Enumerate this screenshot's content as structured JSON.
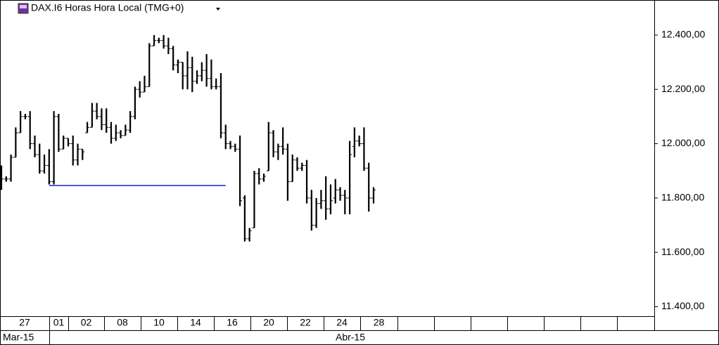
{
  "chart_data": {
    "type": "ohlc",
    "title": "DAX.I6 Horas Hora Local (TMG+0)",
    "ylim": [
      11365,
      12529
    ],
    "yticks": [
      {
        "value": 11400,
        "label": "11.400,00"
      },
      {
        "value": 11600,
        "label": "11.600,00"
      },
      {
        "value": 11800,
        "label": "11.800,00"
      },
      {
        "value": 12000,
        "label": "12.000,00"
      },
      {
        "value": 12200,
        "label": "12.200,00"
      },
      {
        "value": 12400,
        "label": "12.400,00"
      }
    ],
    "color": "#000000",
    "open": [
      11880,
      11870,
      11870,
      11950,
      12040,
      12100,
      12100,
      12000,
      11960,
      11900,
      11920,
      11860,
      12100,
      11980,
      12020,
      12000,
      11940,
      11980,
      12040,
      12060,
      12120,
      12100,
      12070,
      12060,
      12020,
      12040,
      12030,
      12050,
      12100,
      12200,
      12190,
      12210,
      12360,
      12380,
      12380,
      12360,
      12350,
      12290,
      12300,
      12250,
      12280,
      12230,
      12250,
      12270,
      12240,
      12210,
      12210,
      12040,
      12000,
      11990,
      11980,
      11800,
      11650,
      11690,
      11890,
      11870,
      11900,
      12040,
      11970,
      11990,
      11980,
      11860,
      11940,
      11910,
      11920,
      11800,
      11700,
      11780,
      11790,
      11760,
      11800,
      11830,
      11810,
      11800,
      11990,
      12010,
      12000,
      11910,
      11800
    ],
    "high": [
      11920,
      11880,
      11960,
      12060,
      12120,
      12110,
      12120,
      12030,
      12000,
      11960,
      11980,
      12120,
      12110,
      12030,
      12020,
      12030,
      12000,
      11980,
      12080,
      12150,
      12150,
      12130,
      12130,
      12080,
      12070,
      12050,
      12070,
      12120,
      12210,
      12230,
      12250,
      12370,
      12400,
      12390,
      12400,
      12390,
      12360,
      12310,
      12300,
      12340,
      12320,
      12270,
      12300,
      12330,
      12310,
      12240,
      12260,
      12070,
      12010,
      12000,
      12030,
      11810,
      11690,
      11900,
      11910,
      11890,
      12080,
      12050,
      12000,
      12060,
      12000,
      11960,
      11950,
      11930,
      11940,
      11830,
      11800,
      11830,
      11880,
      11850,
      11870,
      11840,
      11830,
      12010,
      12060,
      12030,
      12060,
      11930,
      11840
    ],
    "low": [
      11830,
      11860,
      11860,
      11950,
      12040,
      12090,
      11980,
      11950,
      11890,
      11890,
      11850,
      11850,
      11970,
      11980,
      11990,
      11920,
      11920,
      11940,
      12040,
      12060,
      12090,
      12050,
      12040,
      12000,
      12010,
      12020,
      12030,
      12040,
      12090,
      12170,
      12190,
      12210,
      12360,
      12370,
      12350,
      12330,
      12270,
      12260,
      12200,
      12200,
      12190,
      12220,
      12230,
      12210,
      12200,
      12200,
      12020,
      11980,
      11980,
      11970,
      11770,
      11640,
      11640,
      11690,
      11850,
      11860,
      11900,
      11950,
      11940,
      11960,
      11790,
      11860,
      11900,
      11900,
      11780,
      11680,
      11690,
      11760,
      11720,
      11740,
      11780,
      11790,
      11740,
      11740,
      11950,
      11990,
      11900,
      11750,
      11780
    ],
    "close": [
      11870,
      11870,
      11950,
      12040,
      12100,
      12100,
      12000,
      11960,
      11900,
      11920,
      11860,
      12100,
      11980,
      12020,
      12000,
      11940,
      11980,
      11970,
      12060,
      12120,
      12100,
      12070,
      12060,
      12020,
      12040,
      12030,
      12050,
      12100,
      12200,
      12190,
      12210,
      12360,
      12380,
      12380,
      12360,
      12350,
      12290,
      12300,
      12250,
      12280,
      12230,
      12250,
      12270,
      12240,
      12210,
      12210,
      12040,
      12000,
      11990,
      11980,
      11790,
      11650,
      11680,
      11890,
      11870,
      11880,
      12040,
      11970,
      11990,
      11980,
      11860,
      11940,
      11910,
      11920,
      11800,
      11700,
      11780,
      11790,
      11760,
      11790,
      11830,
      11810,
      11800,
      11960,
      12010,
      12000,
      11910,
      11800,
      11830
    ],
    "reference_line": {
      "value": 11846,
      "from_bar": 10,
      "to_bar": 47,
      "color": "#1a1acc"
    },
    "date_labels": [
      "27",
      "01",
      "02",
      "08",
      "10",
      "14",
      "16",
      "20",
      "22",
      "24",
      "28"
    ],
    "month_labels": [
      "Mar-15",
      "Abr-15"
    ]
  }
}
